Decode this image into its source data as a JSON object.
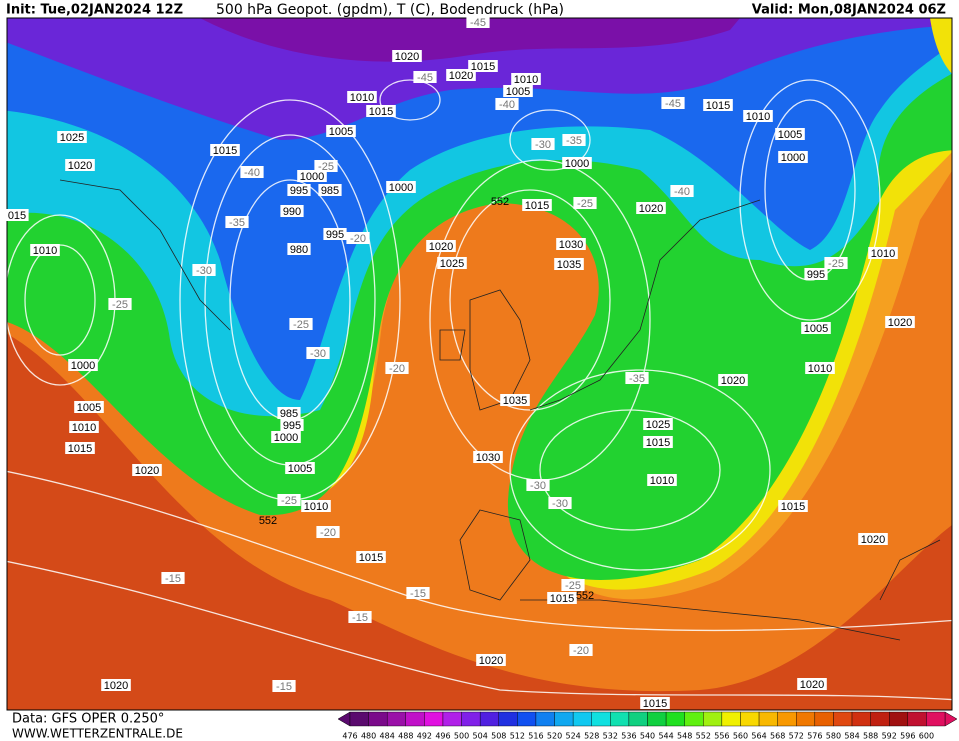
{
  "header": {
    "init": "Init: Tue,02JAN2024 12Z",
    "title": "500 hPa Geopot. (gpdm), T (C), Bodendruck (hPa)",
    "valid": "Valid: Mon,08JAN2024 06Z"
  },
  "footer": {
    "data_source": "Data: GFS OPER 0.250°",
    "website": "WWW.WETTERZENTRALE.DE"
  },
  "colorbar": {
    "ticks": [
      476,
      480,
      484,
      488,
      492,
      496,
      500,
      504,
      508,
      512,
      516,
      520,
      524,
      528,
      532,
      536,
      540,
      544,
      548,
      552,
      556,
      560,
      564,
      568,
      572,
      576,
      580,
      584,
      588,
      592,
      596,
      600
    ],
    "colors": [
      "#5a0a6e",
      "#7a0a8a",
      "#9a10a8",
      "#c010c8",
      "#e010e0",
      "#b020e8",
      "#8020e8",
      "#5020e0",
      "#2030e0",
      "#1050f0",
      "#1080f0",
      "#10a8f0",
      "#10c8f0",
      "#10e0e0",
      "#10e0b0",
      "#10d080",
      "#10d040",
      "#20e020",
      "#60f010",
      "#a0f010",
      "#f0f000",
      "#f8d800",
      "#f8b800",
      "#f89800",
      "#f07800",
      "#e86000",
      "#e04810",
      "#d03010",
      "#c02010",
      "#a01010",
      "#c01030",
      "#e01060"
    ]
  },
  "isobar_labels": [
    "1020",
    "1020",
    "1015",
    "1010",
    "1005",
    "1010",
    "1015",
    "1025",
    "1020",
    "1015",
    "1005",
    "1000",
    "995",
    "985",
    "1000",
    "990",
    "980",
    "995",
    "1020",
    "1025",
    "1015",
    "1030",
    "1035",
    "1020",
    "1000",
    "1015",
    "1010",
    "1005",
    "1000",
    "995",
    "1010",
    "1005",
    "1010",
    "1020",
    "1020",
    "1010",
    "1000",
    "1005",
    "1010",
    "1015",
    "1020",
    "985",
    "995",
    "1000",
    "1005",
    "1010",
    "1035",
    "1030",
    "1025",
    "1015",
    "1010",
    "1015",
    "1020",
    "1015",
    "1015",
    "1020",
    "1020",
    "1015",
    "1020",
    "015"
  ],
  "temperature_labels": [
    "-45",
    "-45",
    "-40",
    "-45",
    "-35",
    "-30",
    "-25",
    "-40",
    "-40",
    "-25",
    "-35",
    "-30",
    "-20",
    "-25",
    "-25",
    "-30",
    "-25",
    "-20",
    "-35",
    "-25",
    "-20",
    "-30",
    "-30",
    "-15",
    "-15",
    "-15",
    "-25",
    "-20",
    "-15"
  ],
  "contour_labels": [
    "552",
    "552",
    "552"
  ]
}
